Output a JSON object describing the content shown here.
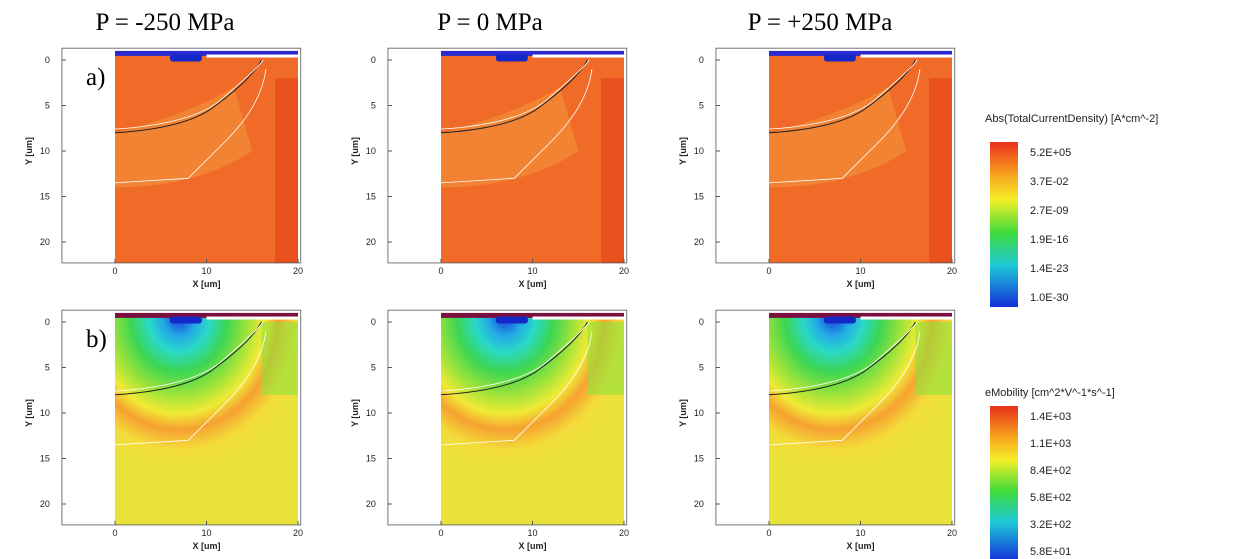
{
  "column_titles": [
    "P = -250 MPa",
    "P = 0 MPa",
    "P = +250 MPa"
  ],
  "row_labels": [
    "a)",
    "b)"
  ],
  "axis": {
    "x_label": "X [um]",
    "y_label": "Y [um]",
    "x_ticks": [
      "0",
      "10",
      "20"
    ],
    "y_ticks": [
      "0",
      "5",
      "10",
      "15",
      "20"
    ]
  },
  "legends": [
    {
      "title": "Abs(TotalCurrentDensity) [A*cm^-2]",
      "labels": [
        "5.2E+05",
        "3.7E-02",
        "2.7E-09",
        "1.9E-16",
        "1.4E-23",
        "1.0E-30"
      ]
    },
    {
      "title": "eMobility [cm^2*V^-1*s^-1]",
      "labels": [
        "1.4E+03",
        "1.1E+03",
        "8.4E+02",
        "5.8E+02",
        "3.2E+02",
        "5.8E+01"
      ]
    }
  ]
}
